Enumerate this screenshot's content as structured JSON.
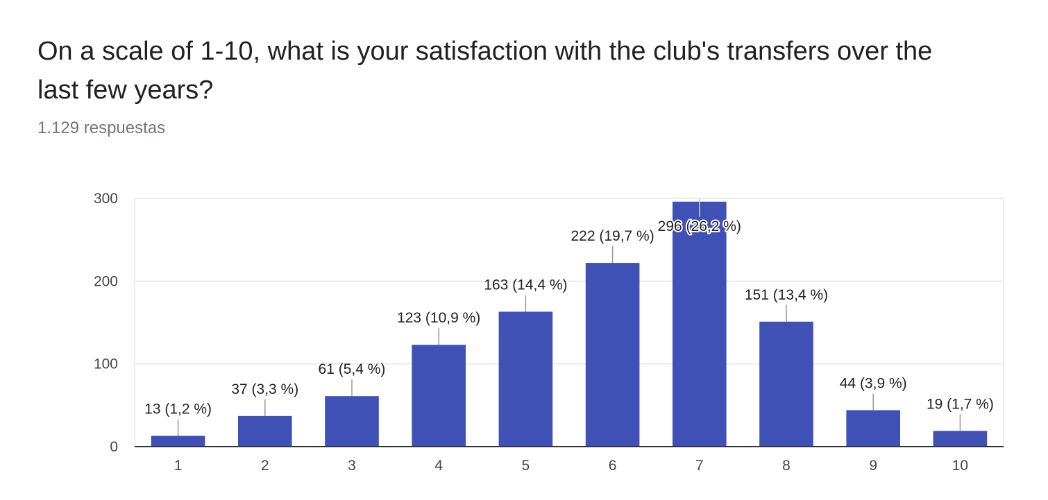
{
  "header": {
    "title": "On a scale of 1-10, what is your satisfaction with the club's transfers over the last few years?",
    "responses": "1.129 respuestas"
  },
  "chart_data": {
    "type": "bar",
    "title": "On a scale of 1-10, what is your satisfaction with the club's transfers over the last few years?",
    "xlabel": "",
    "ylabel": "",
    "categories": [
      "1",
      "2",
      "3",
      "4",
      "5",
      "6",
      "7",
      "8",
      "9",
      "10"
    ],
    "values": [
      13,
      37,
      61,
      123,
      163,
      222,
      296,
      151,
      44,
      19
    ],
    "data_labels": [
      "13 (1,2 %)",
      "37 (3,3 %)",
      "61 (5,4 %)",
      "123 (10,9 %)",
      "163 (14,4 %)",
      "222 (19,7 %)",
      "296 (26,2 %)",
      "151 (13,4 %)",
      "44 (3,9 %)",
      "19 (1,7 %)"
    ],
    "ylim": [
      0,
      300
    ],
    "yticks": [
      0,
      100,
      200,
      300
    ],
    "grid": true,
    "legend": "none",
    "colors": {
      "bar": "#3f51b5",
      "grid": "#e6e6e6",
      "axis": "#333333",
      "tick_text": "#444444",
      "label_text": "#222222",
      "leader": "#999999"
    }
  }
}
